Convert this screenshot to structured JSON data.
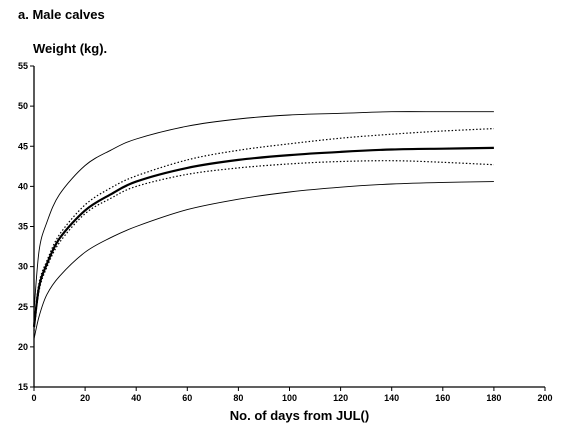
{
  "chart_data": {
    "type": "line",
    "panel_title": "a. Male calves",
    "ylabel": "Weight (kg).",
    "xlabel": "No. of days from JUL()",
    "xlim": [
      0,
      200
    ],
    "ylim": [
      15,
      55
    ],
    "x_ticks": [
      0,
      20,
      40,
      60,
      80,
      100,
      120,
      140,
      160,
      180,
      200
    ],
    "y_ticks": [
      15,
      20,
      25,
      30,
      35,
      40,
      45,
      50,
      55
    ],
    "y_tick_labels": [
      "15",
      "20",
      "25",
      "30",
      "35",
      "40",
      "45",
      "50",
      "55"
    ],
    "grid": false,
    "legend": "none",
    "series": [
      {
        "style": "solid-bold",
        "x": [
          0,
          2,
          5,
          10,
          20,
          30,
          40,
          60,
          80,
          100,
          120,
          140,
          160,
          180
        ],
        "values": [
          22.5,
          27.5,
          30.3,
          33.5,
          37.0,
          39.0,
          40.6,
          42.3,
          43.3,
          43.9,
          44.3,
          44.6,
          44.7,
          44.8
        ]
      },
      {
        "style": "dotted",
        "x": [
          0,
          2,
          5,
          10,
          20,
          30,
          40,
          60,
          80,
          100,
          120,
          140,
          160,
          180
        ],
        "values": [
          23.0,
          28.0,
          30.7,
          34.0,
          37.7,
          39.8,
          41.3,
          43.3,
          44.5,
          45.3,
          46.0,
          46.5,
          46.9,
          47.2
        ]
      },
      {
        "style": "dotted",
        "x": [
          0,
          2,
          5,
          10,
          20,
          30,
          40,
          60,
          80,
          100,
          120,
          140,
          160,
          180
        ],
        "values": [
          22.0,
          27.0,
          29.9,
          33.0,
          36.6,
          38.5,
          40.0,
          41.5,
          42.3,
          42.8,
          43.1,
          43.2,
          43.0,
          42.7
        ]
      },
      {
        "style": "thin",
        "x": [
          0,
          2,
          5,
          10,
          20,
          30,
          40,
          60,
          80,
          100,
          120,
          140,
          160,
          180
        ],
        "values": [
          24.5,
          32.0,
          35.5,
          39.0,
          42.6,
          44.5,
          45.9,
          47.5,
          48.4,
          48.9,
          49.1,
          49.3,
          49.3,
          49.3
        ]
      },
      {
        "style": "thin",
        "x": [
          0,
          2,
          5,
          10,
          20,
          30,
          40,
          60,
          80,
          100,
          120,
          140,
          160,
          180
        ],
        "values": [
          21.0,
          23.8,
          26.5,
          28.8,
          31.8,
          33.6,
          35.0,
          37.1,
          38.4,
          39.3,
          39.9,
          40.3,
          40.5,
          40.6
        ]
      }
    ]
  }
}
